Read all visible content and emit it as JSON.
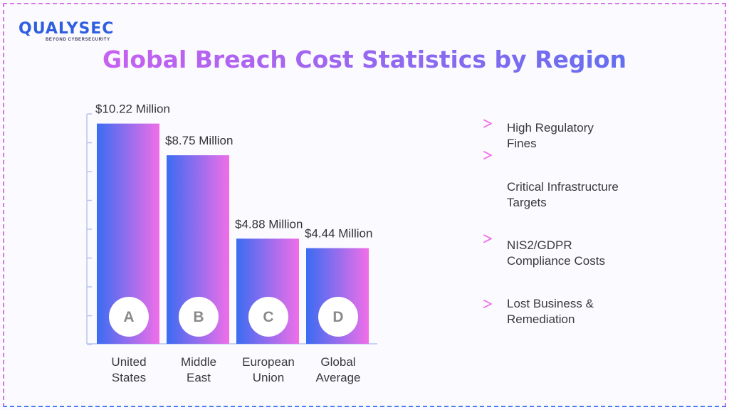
{
  "brand": {
    "logo_text": "QUALYSEC",
    "tagline": "BEYOND CYBERSECURITY",
    "primary_color": "#2f5fe0"
  },
  "page": {
    "title": "Global Breach Cost Statistics by Region"
  },
  "colors": {
    "bar_gradient_start": "#3b6cf2",
    "bar_gradient_end": "#f06ee8",
    "arrow_start": "#4f72ef",
    "arrow_end": "#f06ee8",
    "badge_fill": "#ffffff",
    "badge_text": "#8a8a8a"
  },
  "chart_data": {
    "type": "bar",
    "title": "Global Breach Cost Statistics by Region",
    "xlabel": "",
    "ylabel": "",
    "ylim": [
      0,
      11
    ],
    "grid": false,
    "unit": "Million USD",
    "categories": [
      "United States",
      "Middle East",
      "European Union",
      "Global Average"
    ],
    "category_lines": [
      [
        "United",
        "States"
      ],
      [
        "Middle",
        "East"
      ],
      [
        "European",
        "Union"
      ],
      [
        "Global",
        "Average"
      ]
    ],
    "badges": [
      "A",
      "B",
      "C",
      "D"
    ],
    "values": [
      10.22,
      8.75,
      4.88,
      4.44
    ],
    "value_labels": [
      "$10.22 Million",
      "$8.75 Million",
      "$4.88 Million",
      "$4.44 Million"
    ],
    "annotations": [
      [
        "High Regulatory",
        "Fines"
      ],
      [
        "Critical Infrastructure",
        "Targets"
      ],
      [
        "NIS2/GDPR",
        "Compliance Costs"
      ],
      [
        "Lost Business &",
        "Remediation"
      ]
    ]
  }
}
